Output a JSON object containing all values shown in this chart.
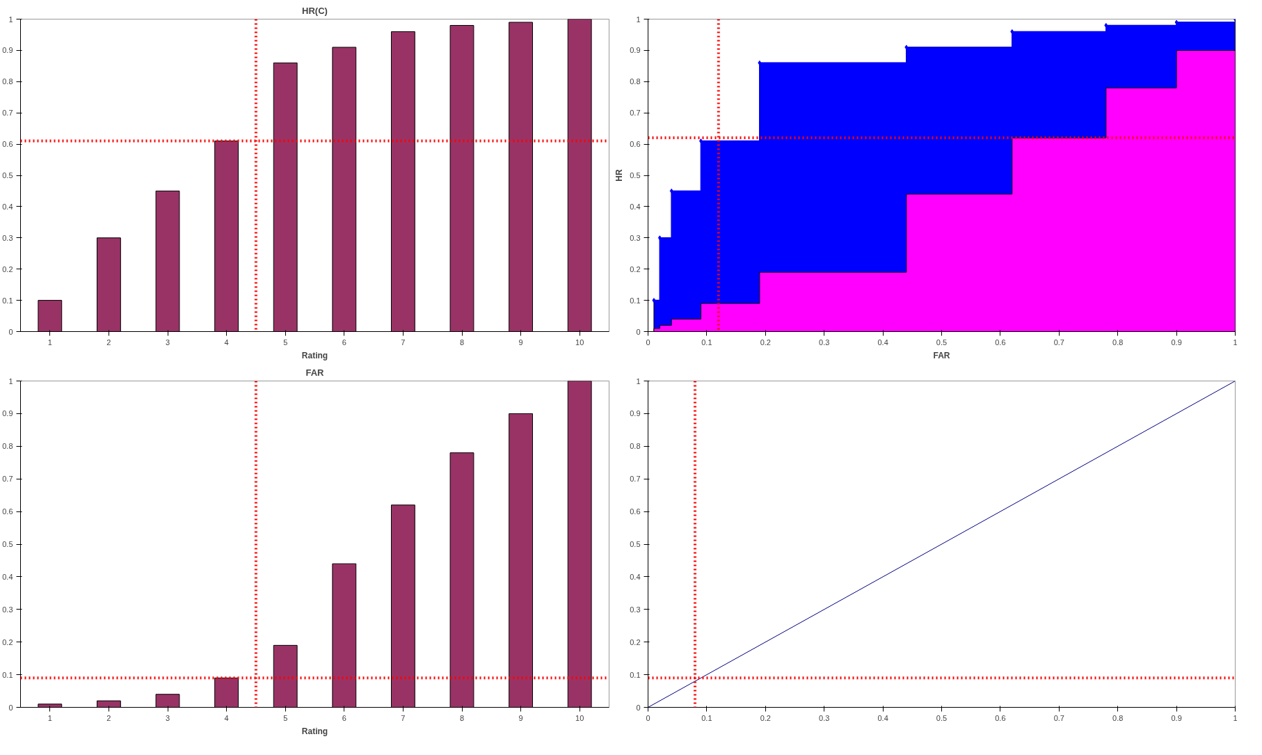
{
  "chart_data": [
    {
      "type": "bar",
      "title": "HR(C)",
      "xlabel": "Rating",
      "x": [
        1,
        2,
        3,
        4,
        5,
        6,
        7,
        8,
        9,
        10
      ],
      "values": [
        0.1,
        0.3,
        0.45,
        0.61,
        0.86,
        0.91,
        0.96,
        0.98,
        0.99,
        1.0
      ],
      "color": "#993366",
      "xlim": [
        0.5,
        10.5
      ],
      "xticks": [
        1,
        2,
        3,
        4,
        5,
        6,
        7,
        8,
        9,
        10
      ],
      "ylim": [
        0,
        1
      ],
      "yticks": [
        0,
        0.1,
        0.2,
        0.3,
        0.4,
        0.5,
        0.6,
        0.7,
        0.8,
        0.9,
        1
      ],
      "grid": false,
      "ref_lines": [
        {
          "axis": "y",
          "value": 0.61,
          "color": "#ff0000",
          "line_style": "dotted"
        },
        {
          "axis": "x",
          "value": 4.5,
          "color": "#ff0000",
          "line_style": "dotted"
        }
      ]
    },
    {
      "type": "step",
      "xlabel": "FAR",
      "ylabel": "HR",
      "xlim": [
        0,
        1
      ],
      "ylim": [
        0,
        1
      ],
      "xticks": [
        0,
        0.1,
        0.2,
        0.3,
        0.4,
        0.5,
        0.6,
        0.7,
        0.8,
        0.9,
        1
      ],
      "yticks": [
        0,
        0.1,
        0.2,
        0.3,
        0.4,
        0.5,
        0.6,
        0.7,
        0.8,
        0.9,
        1
      ],
      "grid": false,
      "series": [
        {
          "type": "step",
          "marker": "diamond",
          "color": "#0000ff",
          "x": [
            0.01,
            0.02,
            0.04,
            0.09,
            0.19,
            0.44,
            0.62,
            0.78,
            0.9,
            1.0
          ],
          "values": [
            0.1,
            0.3,
            0.45,
            0.61,
            0.86,
            0.91,
            0.96,
            0.98,
            0.99,
            1.0
          ]
        },
        {
          "type": "area",
          "color": "#ff00ff",
          "x": [
            0.01,
            0.02,
            0.02,
            0.04,
            0.04,
            0.09,
            0.09,
            0.19,
            0.19,
            0.44,
            0.44,
            0.62,
            0.62,
            0.78,
            0.78,
            0.9,
            0.9,
            1.0,
            1.0
          ],
          "values": [
            0.01,
            0.01,
            0.02,
            0.02,
            0.04,
            0.04,
            0.09,
            0.09,
            0.19,
            0.19,
            0.44,
            0.44,
            0.62,
            0.62,
            0.78,
            0.78,
            0.9,
            0.9,
            1.0
          ]
        }
      ],
      "ref_lines": [
        {
          "axis": "y",
          "value": 0.62,
          "color": "#ff0000",
          "line_style": "dotted"
        },
        {
          "axis": "x",
          "value": 0.12,
          "color": "#ff0000",
          "line_style": "dotted"
        }
      ]
    },
    {
      "type": "bar",
      "title": "FAR",
      "xlabel": "Rating",
      "x": [
        1,
        2,
        3,
        4,
        5,
        6,
        7,
        8,
        9,
        10
      ],
      "values": [
        0.01,
        0.02,
        0.04,
        0.09,
        0.19,
        0.44,
        0.62,
        0.78,
        0.9,
        1.0
      ],
      "color": "#993366",
      "xlim": [
        0.5,
        10.5
      ],
      "xticks": [
        1,
        2,
        3,
        4,
        5,
        6,
        7,
        8,
        9,
        10
      ],
      "ylim": [
        0,
        1
      ],
      "yticks": [
        0,
        0.1,
        0.2,
        0.3,
        0.4,
        0.5,
        0.6,
        0.7,
        0.8,
        0.9,
        1
      ],
      "grid": false,
      "ref_lines": [
        {
          "axis": "y",
          "value": 0.09,
          "color": "#ff0000",
          "line_style": "dotted"
        },
        {
          "axis": "x",
          "value": 4.5,
          "color": "#ff0000",
          "line_style": "dotted"
        }
      ]
    },
    {
      "type": "line",
      "x": [
        0,
        1
      ],
      "values": [
        0,
        1
      ],
      "color": "#000080",
      "xlim": [
        0,
        1
      ],
      "ylim": [
        0,
        1
      ],
      "xticks": [
        0,
        0.1,
        0.2,
        0.3,
        0.4,
        0.5,
        0.6,
        0.7,
        0.8,
        0.9,
        1
      ],
      "yticks": [
        0,
        0.1,
        0.2,
        0.3,
        0.4,
        0.5,
        0.6,
        0.7,
        0.8,
        0.9,
        1
      ],
      "grid": false,
      "ref_lines": [
        {
          "axis": "y",
          "value": 0.09,
          "color": "#ff0000",
          "line_style": "dotted"
        },
        {
          "axis": "x",
          "value": 0.08,
          "color": "#ff0000",
          "line_style": "dotted"
        }
      ]
    }
  ]
}
